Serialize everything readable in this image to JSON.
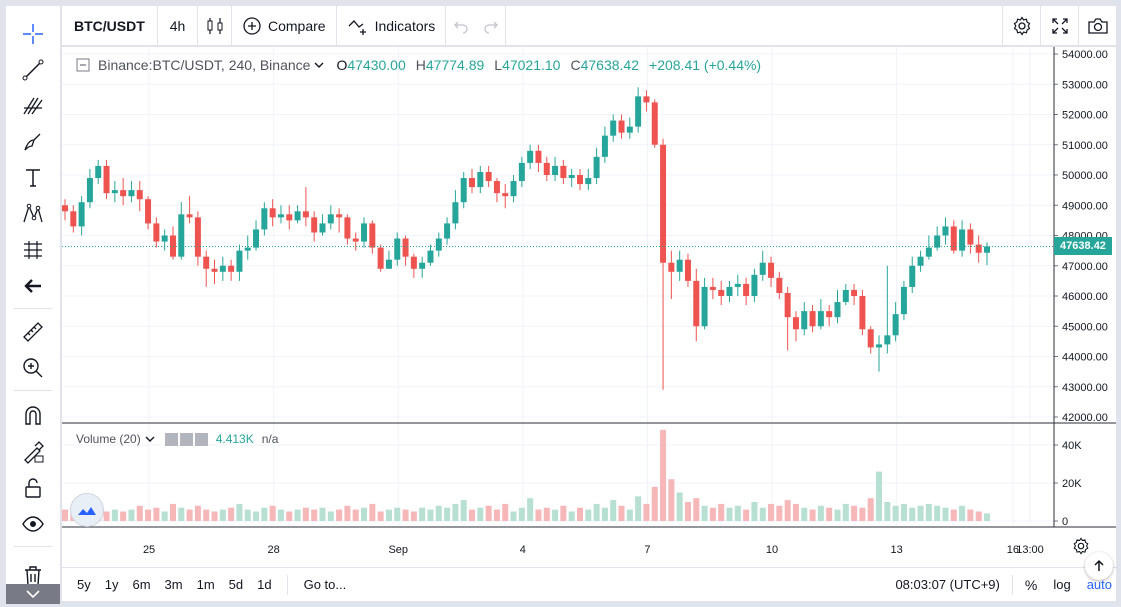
{
  "topbar": {
    "symbol": "BTC/USDT",
    "interval": "4h",
    "compare_label": "Compare",
    "indicators_label": "Indicators"
  },
  "legend": {
    "title": "Binance:BTC/USDT, 240, Binance",
    "o_label": "O",
    "o_value": "47430.00",
    "h_label": "H",
    "h_value": "47774.89",
    "l_label": "L",
    "l_value": "47021.10",
    "c_label": "C",
    "c_value": "47638.42",
    "change": "+208.41 (+0.44%)"
  },
  "volume_legend": {
    "title": "Volume (20)",
    "value": "4.413K",
    "extra": "n/a"
  },
  "price_axis": [
    "54000.00",
    "53000.00",
    "52000.00",
    "51000.00",
    "50000.00",
    "49000.00",
    "48000.00",
    "47000.00",
    "46000.00",
    "45000.00",
    "44000.00",
    "43000.00",
    "42000.00"
  ],
  "last_price_tag": "47638.42",
  "volume_axis": [
    "40K",
    "20K",
    "0"
  ],
  "time_axis": [
    "25",
    "28",
    "Sep",
    "4",
    "7",
    "10",
    "13",
    "16",
    "13:00"
  ],
  "bottombar": {
    "ranges": [
      "5y",
      "1y",
      "6m",
      "3m",
      "1m",
      "5d",
      "1d"
    ],
    "goto_label": "Go to...",
    "clock": "08:03:07 (UTC+9)",
    "percent_label": "%",
    "log_label": "log",
    "auto_label": "auto"
  },
  "colors": {
    "up": "#26a69a",
    "down": "#ef5350",
    "up_vol": "#b7dfd2",
    "down_vol": "#f6b7b8",
    "accent": "#2962ff"
  },
  "chart_data": {
    "type": "candlestick",
    "ylim": [
      42000,
      54000
    ],
    "last_price": 47638.42,
    "candles": [
      [
        49000,
        48800,
        49200,
        48500
      ],
      [
        48800,
        48300,
        49000,
        48100
      ],
      [
        48300,
        49100,
        49300,
        48000
      ],
      [
        49100,
        49900,
        50200,
        48900
      ],
      [
        49900,
        50300,
        50500,
        49700
      ],
      [
        50300,
        49400,
        50500,
        49200
      ],
      [
        49400,
        49500,
        49800,
        49100
      ],
      [
        49500,
        49300,
        49900,
        49000
      ],
      [
        49300,
        49500,
        49800,
        49100
      ],
      [
        49500,
        49200,
        49800,
        48800
      ],
      [
        49200,
        48400,
        49300,
        48200
      ],
      [
        48400,
        47800,
        48600,
        47600
      ],
      [
        47800,
        48000,
        48200,
        47500
      ],
      [
        48000,
        47300,
        48300,
        47200
      ],
      [
        47300,
        48700,
        49100,
        47200
      ],
      [
        48700,
        48600,
        49300,
        48400
      ],
      [
        48600,
        47300,
        48800,
        47000
      ],
      [
        47300,
        46900,
        47500,
        46300
      ],
      [
        46900,
        46800,
        47200,
        46400
      ],
      [
        46800,
        47000,
        47300,
        46500
      ],
      [
        47000,
        46800,
        47200,
        46500
      ],
      [
        46800,
        47500,
        47700,
        46500
      ],
      [
        47500,
        47600,
        48000,
        47200
      ],
      [
        47600,
        48200,
        48500,
        47500
      ],
      [
        48200,
        48900,
        49100,
        48000
      ],
      [
        48900,
        48600,
        49200,
        48300
      ],
      [
        48600,
        48700,
        49000,
        48400
      ],
      [
        48700,
        48500,
        49000,
        48200
      ],
      [
        48500,
        48800,
        49000,
        48400
      ],
      [
        48800,
        48600,
        49600,
        48300
      ],
      [
        48600,
        48100,
        48800,
        47800
      ],
      [
        48100,
        48400,
        48700,
        48000
      ],
      [
        48400,
        48700,
        49000,
        48200
      ],
      [
        48700,
        48600,
        48900,
        48100
      ],
      [
        48600,
        47900,
        48700,
        47700
      ],
      [
        47900,
        47800,
        48100,
        47500
      ],
      [
        47800,
        48400,
        48600,
        47600
      ],
      [
        48400,
        47600,
        48500,
        47400
      ],
      [
        47600,
        46900,
        47700,
        46800
      ],
      [
        46900,
        47200,
        47500,
        46900
      ],
      [
        47200,
        47900,
        48100,
        47000
      ],
      [
        47900,
        47300,
        48000,
        47000
      ],
      [
        47300,
        46900,
        47400,
        46600
      ],
      [
        46900,
        47100,
        47300,
        46600
      ],
      [
        47100,
        47500,
        47700,
        47000
      ],
      [
        47500,
        47900,
        48100,
        47300
      ],
      [
        47900,
        48400,
        48600,
        47700
      ],
      [
        48400,
        49100,
        49500,
        48200
      ],
      [
        49100,
        49900,
        50100,
        48900
      ],
      [
        49900,
        49600,
        50200,
        49400
      ],
      [
        49600,
        50100,
        50300,
        49400
      ],
      [
        50100,
        49800,
        50300,
        49600
      ],
      [
        49800,
        49400,
        49900,
        49100
      ],
      [
        49400,
        49300,
        49700,
        48900
      ],
      [
        49300,
        49800,
        50000,
        49100
      ],
      [
        49800,
        50400,
        50600,
        49600
      ],
      [
        50400,
        50800,
        51000,
        50200
      ],
      [
        50800,
        50400,
        51000,
        50100
      ],
      [
        50400,
        50000,
        50600,
        49800
      ],
      [
        50000,
        50300,
        50600,
        49800
      ],
      [
        50300,
        49900,
        50500,
        49700
      ],
      [
        49900,
        50000,
        50200,
        49600
      ],
      [
        50000,
        49700,
        50200,
        49500
      ],
      [
        49700,
        49900,
        50200,
        49500
      ],
      [
        49900,
        50600,
        50900,
        49700
      ],
      [
        50600,
        51300,
        51600,
        50400
      ],
      [
        51300,
        51800,
        52000,
        51100
      ],
      [
        51800,
        51400,
        52000,
        51200
      ],
      [
        51400,
        51600,
        51900,
        51200
      ],
      [
        51600,
        52600,
        52900,
        51400
      ],
      [
        52600,
        52400,
        52800,
        52100
      ],
      [
        52400,
        51000,
        52500,
        50900
      ],
      [
        51000,
        47100,
        51200,
        42900
      ],
      [
        47100,
        46800,
        47500,
        45900
      ],
      [
        46800,
        47200,
        47500,
        46500
      ],
      [
        47200,
        46500,
        47400,
        46300
      ],
      [
        46500,
        45000,
        46900,
        44500
      ],
      [
        45000,
        46300,
        46600,
        44900
      ],
      [
        46300,
        46200,
        46600,
        45900
      ],
      [
        46200,
        46000,
        46500,
        45700
      ],
      [
        46000,
        46300,
        46500,
        45800
      ],
      [
        46300,
        46400,
        46700,
        46000
      ],
      [
        46400,
        46000,
        46600,
        45700
      ],
      [
        46000,
        46700,
        46900,
        45800
      ],
      [
        46700,
        47100,
        47500,
        46500
      ],
      [
        47100,
        46600,
        47300,
        46300
      ],
      [
        46600,
        46100,
        46800,
        45900
      ],
      [
        46100,
        45300,
        46300,
        44200
      ],
      [
        45300,
        44900,
        45500,
        44500
      ],
      [
        44900,
        45500,
        45800,
        44700
      ],
      [
        45500,
        45000,
        45700,
        44800
      ],
      [
        45000,
        45500,
        45900,
        44900
      ],
      [
        45500,
        45300,
        45700,
        45000
      ],
      [
        45300,
        45800,
        46200,
        45100
      ],
      [
        45800,
        46200,
        46400,
        45700
      ],
      [
        46200,
        46000,
        46400,
        45700
      ],
      [
        46000,
        44900,
        46200,
        44700
      ],
      [
        44900,
        44300,
        45000,
        44100
      ],
      [
        44300,
        44400,
        44700,
        43500
      ],
      [
        44400,
        44700,
        47000,
        44100
      ],
      [
        44700,
        45400,
        45800,
        44500
      ],
      [
        45400,
        46300,
        46500,
        45200
      ],
      [
        46300,
        47000,
        47300,
        46100
      ],
      [
        47000,
        47300,
        47500,
        46800
      ],
      [
        47300,
        47600,
        48000,
        47200
      ],
      [
        47600,
        48000,
        48300,
        47500
      ],
      [
        48000,
        48300,
        48600,
        47700
      ],
      [
        48300,
        47500,
        48500,
        47400
      ],
      [
        47500,
        48200,
        48500,
        47300
      ],
      [
        48200,
        47700,
        48400,
        47400
      ],
      [
        47700,
        47430,
        48000,
        47100
      ],
      [
        47430,
        47638.42,
        47774.89,
        47021.1
      ]
    ],
    "volume": [
      6,
      5,
      7,
      6,
      8,
      5,
      6,
      5,
      6,
      8,
      6,
      7,
      5,
      9,
      7,
      6,
      8,
      6,
      5,
      6,
      7,
      9,
      6,
      5,
      7,
      8,
      6,
      5,
      6,
      7,
      6,
      7,
      5,
      6,
      8,
      6,
      7,
      9,
      5,
      6,
      7,
      6,
      5,
      7,
      6,
      8,
      7,
      9,
      11,
      6,
      7,
      8,
      6,
      9,
      5,
      7,
      12,
      6,
      7,
      6,
      8,
      5,
      7,
      6,
      9,
      7,
      11,
      8,
      6,
      13,
      9,
      18,
      48,
      22,
      15,
      10,
      12,
      8,
      7,
      9,
      7,
      8,
      6,
      10,
      7,
      9,
      8,
      11,
      9,
      7,
      6,
      8,
      7,
      6,
      9,
      8,
      7,
      12,
      26,
      10,
      8,
      9,
      7,
      8,
      9,
      8,
      7,
      6,
      8,
      6,
      5,
      4
    ]
  }
}
